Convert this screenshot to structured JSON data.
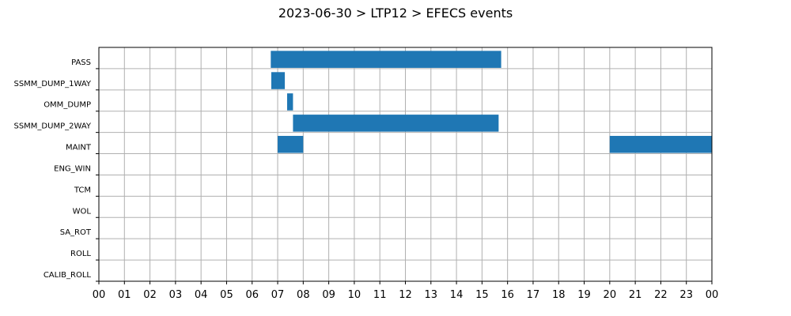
{
  "chart_data": {
    "type": "bar",
    "orientation": "horizontal-timeline",
    "title": "2023-06-30 > LTP12 > EFECS events",
    "xlabel": "",
    "ylabel": "",
    "xlim": [
      0,
      24
    ],
    "x_tick_labels": [
      "00",
      "01",
      "02",
      "03",
      "04",
      "05",
      "06",
      "07",
      "08",
      "09",
      "10",
      "11",
      "12",
      "13",
      "14",
      "15",
      "16",
      "17",
      "18",
      "19",
      "20",
      "21",
      "22",
      "23",
      "00"
    ],
    "categories": [
      "PASS",
      "SSMM_DUMP_1WAY",
      "OMM_DUMP",
      "SSMM_DUMP_2WAY",
      "MAINT",
      "ENG_WIN",
      "TCM",
      "WOL",
      "SA_ROT",
      "ROLL",
      "CALIB_ROLL"
    ],
    "grid": true,
    "bar_color": "#1f77b4",
    "events": [
      {
        "category": "PASS",
        "start": 6.73,
        "end": 15.75
      },
      {
        "category": "SSMM_DUMP_1WAY",
        "start": 6.75,
        "end": 7.28
      },
      {
        "category": "OMM_DUMP",
        "start": 7.37,
        "end": 7.6
      },
      {
        "category": "SSMM_DUMP_2WAY",
        "start": 7.6,
        "end": 15.65
      },
      {
        "category": "MAINT",
        "start": 7.0,
        "end": 8.0
      },
      {
        "category": "MAINT",
        "start": 20.0,
        "end": 24.0
      }
    ]
  }
}
